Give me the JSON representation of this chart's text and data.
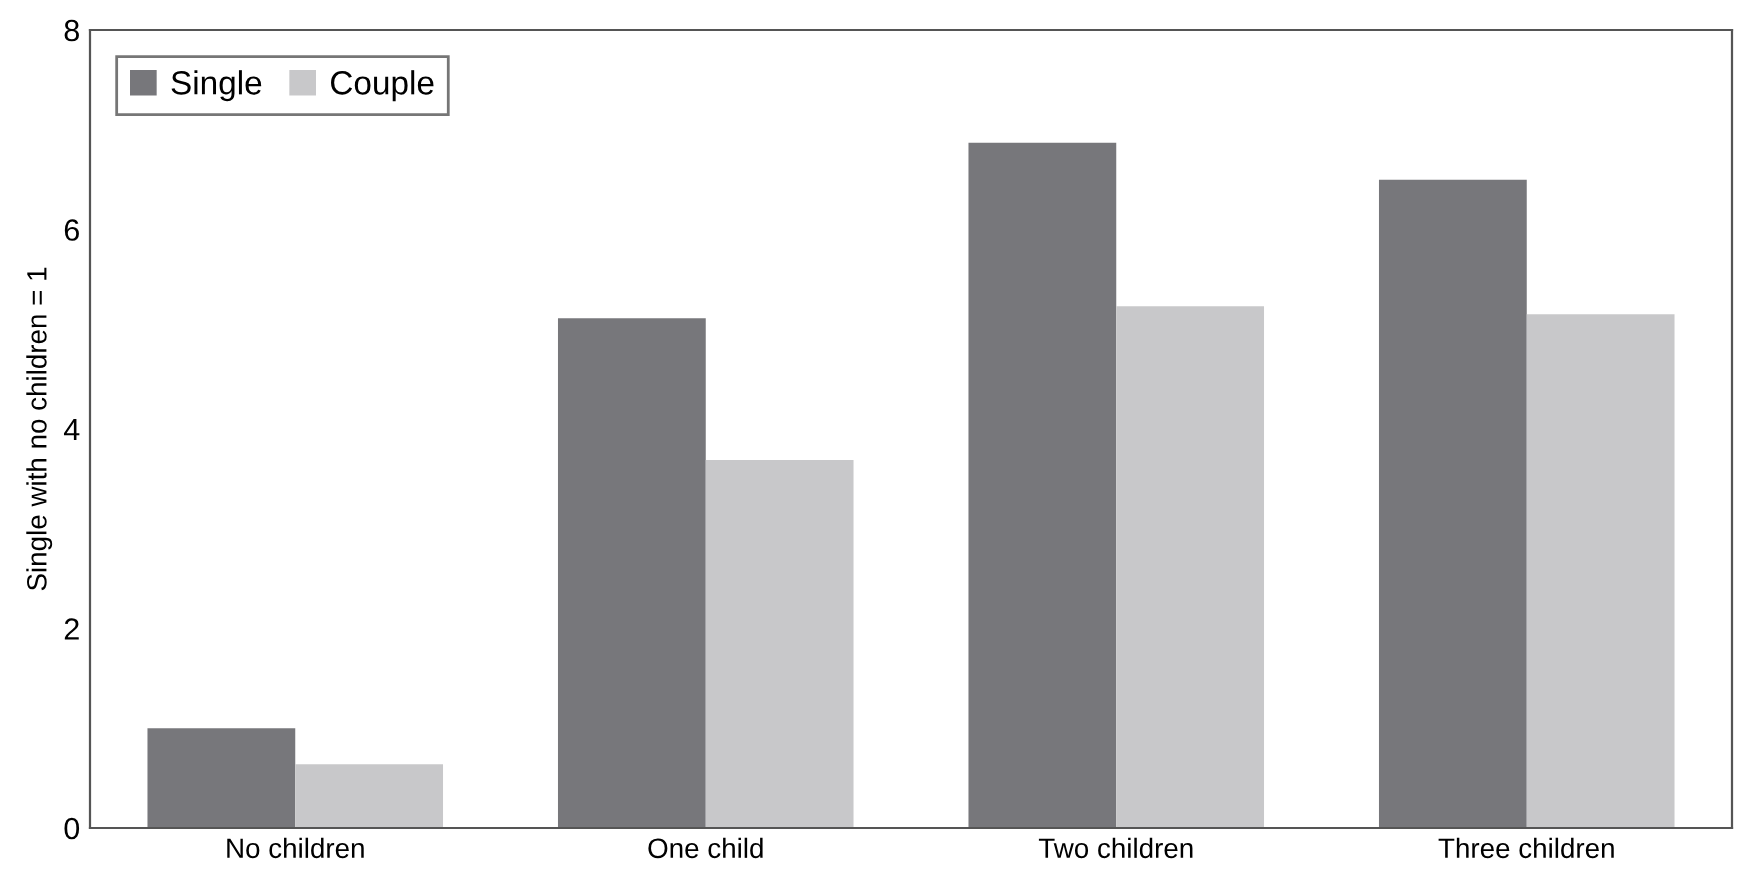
{
  "chart_data": {
    "type": "bar",
    "ylabel": "Single with no children = 1",
    "categories": [
      "No children",
      "One child",
      "Two children",
      "Three children"
    ],
    "series": [
      {
        "name": "Single",
        "color": "#77777b",
        "values": [
          1.0,
          5.11,
          6.87,
          6.5
        ]
      },
      {
        "name": "Couple",
        "color": "#c8c8ca",
        "values": [
          0.64,
          3.69,
          5.23,
          5.15
        ]
      }
    ],
    "ylim": [
      0,
      8
    ],
    "yticks": [
      0,
      2,
      4,
      6,
      8
    ],
    "grid": false,
    "legend": "top left"
  }
}
